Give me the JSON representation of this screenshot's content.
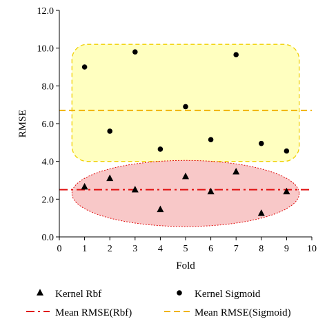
{
  "chart_data": {
    "type": "scatter",
    "xlabel": "Fold",
    "ylabel": "RMSE",
    "xlim": [
      0,
      10
    ],
    "ylim": [
      0,
      12
    ],
    "x_ticks": [
      "0",
      "1",
      "2",
      "3",
      "4",
      "5",
      "6",
      "7",
      "8",
      "9",
      "10"
    ],
    "y_ticks": [
      "0.0",
      "2.0",
      "4.0",
      "6.0",
      "8.0",
      "10.0",
      "12.0"
    ],
    "grid": false,
    "legend_position": "bottom",
    "series": [
      {
        "name": "Kernel Rbf",
        "marker": "triangle",
        "color": "#000000",
        "x": [
          1,
          2,
          3,
          4,
          5,
          6,
          7,
          8,
          9
        ],
        "y": [
          2.65,
          3.1,
          2.5,
          1.45,
          3.2,
          2.4,
          3.45,
          1.25,
          2.4
        ]
      },
      {
        "name": "Kernel Sigmoid",
        "marker": "circle",
        "color": "#000000",
        "x": [
          1,
          2,
          3,
          4,
          5,
          6,
          7,
          8,
          9
        ],
        "y": [
          9.0,
          5.6,
          9.8,
          4.65,
          6.9,
          5.15,
          9.65,
          4.95,
          4.55
        ]
      }
    ],
    "mean_lines": [
      {
        "name": "Mean RMSE(Rbf)",
        "y": 2.5,
        "color": "#e01010",
        "style": "dash-dot"
      },
      {
        "name": "Mean RMSE(Sigmoid)",
        "y": 6.7,
        "color": "#f0b400",
        "style": "dashed"
      }
    ],
    "regions": [
      {
        "shape": "rounded-rect",
        "fill": "#ffffc0",
        "stroke": "#f0d000",
        "x_range": [
          0.5,
          9.5
        ],
        "y_range": [
          4.0,
          10.2
        ]
      },
      {
        "shape": "ellipse",
        "fill": "#f8c8c8",
        "stroke": "#e01010",
        "cx": 5.0,
        "cy": 2.3,
        "rx": 4.5,
        "ry": 1.75
      }
    ]
  }
}
